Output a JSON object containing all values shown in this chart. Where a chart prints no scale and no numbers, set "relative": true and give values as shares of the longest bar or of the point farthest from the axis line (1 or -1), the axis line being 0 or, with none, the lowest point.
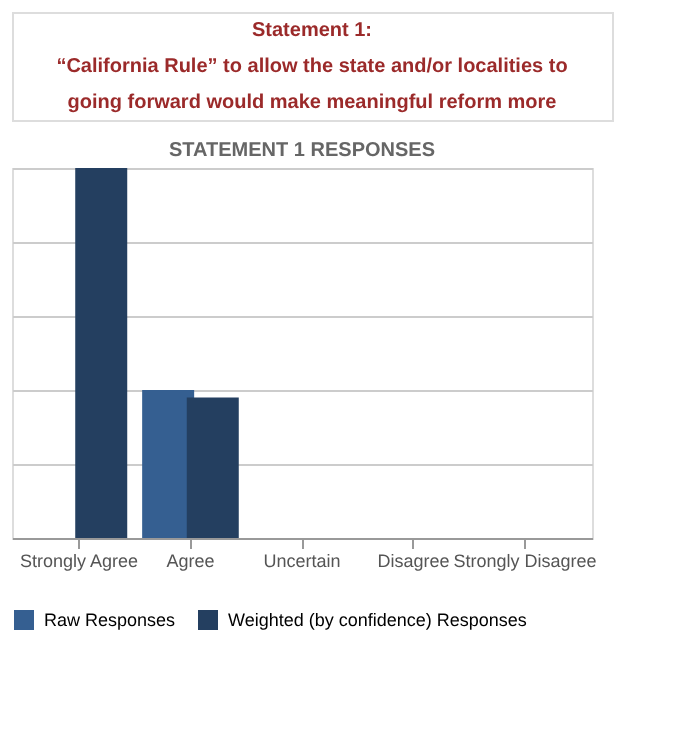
{
  "chart_data": {
    "type": "bar",
    "title": "STATEMENT 1 RESPONSES",
    "annotations": [
      "Statement 1:",
      "“California Rule” to allow the state and/or localities to",
      "going forward would make meaningful reform more"
    ],
    "categories": [
      "Strongly Agree",
      "Agree",
      "Uncertain",
      "Disagree",
      "Strongly Disagree"
    ],
    "series": [
      {
        "name": "Raw Responses",
        "color": "#355f91",
        "values": [
          null,
          0.4,
          0,
          0,
          0
        ]
      },
      {
        "name": "Weighted (by confidence) Responses",
        "color": "#243f60",
        "values": [
          1,
          0.38,
          0,
          0,
          0
        ]
      }
    ],
    "relative": true,
    "grid": "y",
    "legend": "bottom"
  }
}
